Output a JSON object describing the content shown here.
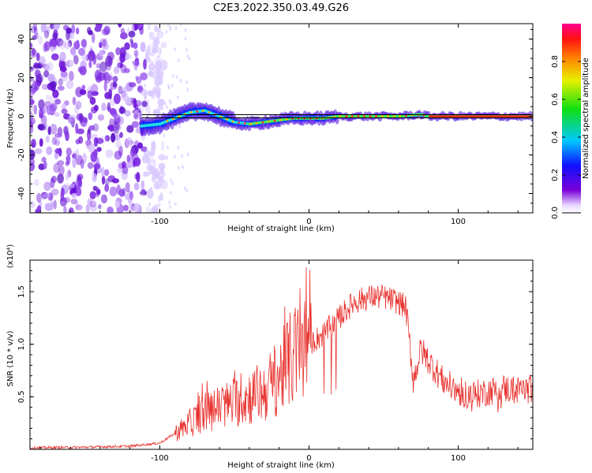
{
  "figure_title": "C2E3.2022.350.03.49.G26",
  "chart_data": [
    {
      "type": "heatmap",
      "xlabel": "Height of straight line (km)",
      "ylabel": "Frequency (Hz)",
      "xlim": [
        -187,
        150
      ],
      "ylim": [
        -50,
        48
      ],
      "x_ticks": [
        -100,
        0,
        100
      ],
      "y_ticks": [
        -40,
        -20,
        0,
        20,
        40
      ],
      "colorbar": {
        "label": "Normalized spectral amplitude",
        "range": [
          0,
          1
        ],
        "ticks": [
          0.0,
          0.2,
          0.4,
          0.6,
          0.8
        ],
        "colormap": "rainbow (purple-blue-cyan-green-yellow-red-magenta)"
      },
      "noise_region_x": [
        -187,
        -105
      ],
      "signal_track": {
        "x": [
          -112,
          -100,
          -90,
          -80,
          -70,
          -60,
          -50,
          -40,
          -30,
          -20,
          -10,
          0,
          10,
          20,
          40,
          60,
          75,
          80,
          100,
          150
        ],
        "frequency": [
          -5,
          -4,
          -1,
          2,
          3,
          0,
          -3,
          -4,
          -3,
          -2,
          -1,
          -1,
          -1,
          0,
          0,
          0,
          1,
          0,
          0,
          0
        ]
      },
      "reference_line_frequency": 0,
      "colors": {
        "noise": "#7b1fd8",
        "track_edge": "#1a1aff",
        "track_core": "#ff2020",
        "reference_line": "#000000"
      }
    },
    {
      "type": "line",
      "xlabel": "Height of straight line (km)",
      "ylabel": "SNR (10 * v/v)",
      "y_multiplier": "(x10⁴)",
      "xlim": [
        -187,
        150
      ],
      "ylim": [
        0,
        18000
      ],
      "x_ticks": [
        -100,
        0,
        100
      ],
      "y_ticks": [
        5000,
        10000,
        15000
      ],
      "y_tick_labels": [
        "0.5",
        "1.0",
        "1.5"
      ],
      "series": [
        {
          "color": "#e8322e",
          "x": [
            -187,
            -150,
            -120,
            -100,
            -90,
            -80,
            -70,
            -60,
            -50,
            -40,
            -30,
            -20,
            -10,
            0,
            10,
            20,
            30,
            40,
            50,
            60,
            65,
            70,
            75,
            80,
            90,
            100,
            110,
            120,
            130,
            140,
            150
          ],
          "y": [
            150,
            200,
            300,
            600,
            1500,
            2500,
            3500,
            4000,
            4500,
            5000,
            5500,
            7000,
            9000,
            10000,
            11000,
            12500,
            14000,
            14500,
            14500,
            14000,
            13500,
            6500,
            9500,
            8500,
            6500,
            5500,
            5200,
            5500,
            5800,
            5600,
            5800
          ]
        }
      ]
    }
  ]
}
